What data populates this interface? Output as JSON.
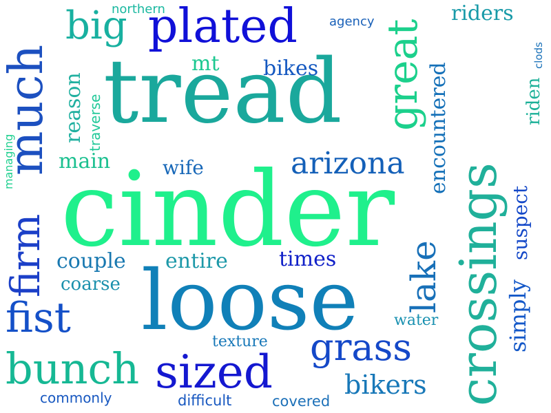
{
  "words": {
    "cinder": {
      "text": "cinder",
      "color": "#1ff08c"
    },
    "tread": {
      "text": "tread",
      "color": "#1aa89c"
    },
    "loose": {
      "text": "loose",
      "color": "#1080b8"
    },
    "crossings": {
      "text": "crossings",
      "color": "#20b09a"
    },
    "much": {
      "text": "much",
      "color": "#1c50c0"
    },
    "plated": {
      "text": "plated",
      "color": "#1010d8"
    },
    "sized": {
      "text": "sized",
      "color": "#1418d0"
    },
    "bunch": {
      "text": "bunch",
      "color": "#16b894"
    },
    "great": {
      "text": "great",
      "color": "#1cd08c"
    },
    "fist": {
      "text": "fist",
      "color": "#1450c8"
    },
    "firm": {
      "text": "firm",
      "color": "#1c40c8"
    },
    "big": {
      "text": "big",
      "color": "#18b0a0"
    },
    "grass": {
      "text": "grass",
      "color": "#1448c8"
    },
    "lake": {
      "text": "lake",
      "color": "#1870b8"
    },
    "arizona": {
      "text": "arizona",
      "color": "#1460b8"
    },
    "bikers": {
      "text": "bikers",
      "color": "#1878b8"
    },
    "simply": {
      "text": "simply",
      "color": "#1458c8"
    },
    "encountered": {
      "text": "encountered",
      "color": "#1470b8"
    },
    "couple": {
      "text": "couple",
      "color": "#1878b0"
    },
    "riders": {
      "text": "riders",
      "color": "#189aa8"
    },
    "reason": {
      "text": "reason",
      "color": "#20b0a0"
    },
    "times": {
      "text": "times",
      "color": "#1020c8"
    },
    "entire": {
      "text": "entire",
      "color": "#1c98a8"
    },
    "bikes": {
      "text": "bikes",
      "color": "#1458c0"
    },
    "main": {
      "text": "main",
      "color": "#1cc090"
    },
    "mt": {
      "text": "mt",
      "color": "#1cc890"
    },
    "wife": {
      "text": "wife",
      "color": "#1868b8"
    },
    "suspect": {
      "text": "suspect",
      "color": "#1448c8"
    },
    "riden": {
      "text": "riden",
      "color": "#1cb098"
    },
    "coarse": {
      "text": "coarse",
      "color": "#1a90ac"
    },
    "texture": {
      "text": "texture",
      "color": "#1878b8"
    },
    "water": {
      "text": "water",
      "color": "#1890b0"
    },
    "difficult": {
      "text": "difficult",
      "color": "#1858c0"
    },
    "covered": {
      "text": "covered",
      "color": "#1c70b8"
    },
    "commonly": {
      "text": "commonly",
      "color": "#1858c0"
    },
    "traverse": {
      "text": "traverse",
      "color": "#20c898"
    },
    "agency": {
      "text": "agency",
      "color": "#1860b8"
    },
    "northern": {
      "text": "northern",
      "color": "#1ab8a0"
    },
    "managing": {
      "text": "managing",
      "color": "#20d090"
    },
    "clods": {
      "text": "clods",
      "color": "#1870b8"
    }
  }
}
